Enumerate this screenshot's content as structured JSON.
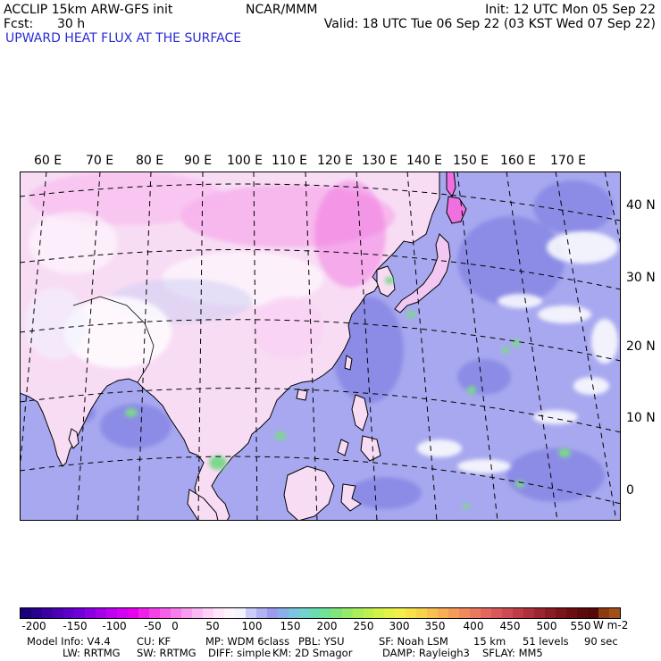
{
  "header": {
    "model_title": "ACCLIP 15km ARW-GFS init",
    "fcst_label": "Fcst:",
    "fcst_value": "30 h",
    "center_org": "NCAR/MMM",
    "init_time": "Init: 12 UTC Mon 05 Sep 22",
    "valid_time": "Valid: 18 UTC Tue 06 Sep 22 (03 KST Wed 07 Sep 22)",
    "field_name": "UPWARD HEAT FLUX AT THE SURFACE"
  },
  "map": {
    "lon_labels": [
      "60 E",
      "70 E",
      "80 E",
      "90 E",
      "100 E",
      "110 E",
      "120 E",
      "130 E",
      "140 E",
      "150 E",
      "160 E",
      "170 E"
    ],
    "lat_labels": [
      "40 N",
      "30 N",
      "20 N",
      "10 N",
      "0"
    ],
    "colors": {
      "ocean": "#a8a8f0",
      "land_warm": "#f8d8f4",
      "land_neutral": "#ffffff",
      "strong_negative": "#f070e0",
      "positive_green": "#7cd88c",
      "coastline": "#000000",
      "gridline": "#000000"
    }
  },
  "colorbar": {
    "unit": "W m-2",
    "tick_labels": [
      "-200",
      "-150",
      "-100",
      "-50",
      "0",
      "50",
      "100",
      "150",
      "200",
      "250",
      "300",
      "350",
      "400",
      "450",
      "500",
      "550"
    ],
    "colors": [
      "#1a007a",
      "#2a008e",
      "#3a00a2",
      "#4c00b6",
      "#5e00c8",
      "#7000d8",
      "#8a00e2",
      "#a400ea",
      "#be00f0",
      "#d400f2",
      "#e600ee",
      "#f020e8",
      "#f442e6",
      "#f660e8",
      "#f87eec",
      "#fa9cf0",
      "#fcb8f4",
      "#fed2f8",
      "#ffe6fa",
      "#fff4fc",
      "#f4f4ff",
      "#ccccf8",
      "#b2b2f2",
      "#9c9cee",
      "#8ab0ea",
      "#7cc4e0",
      "#72d2cc",
      "#6cdcb0",
      "#70e294",
      "#80e67c",
      "#96ea6a",
      "#aaee5c",
      "#c0f050",
      "#d2f24a",
      "#e4f248",
      "#f2f048",
      "#f6e248",
      "#f8d24a",
      "#f8c04e",
      "#f8ae52",
      "#f49c58",
      "#f08a5e",
      "#ea7860",
      "#e2685e",
      "#d8585a",
      "#cc4a52",
      "#be3c48",
      "#ae303c",
      "#9c2630",
      "#8a1c24",
      "#7a141a",
      "#6c0e12",
      "#5e0a0c",
      "#540808",
      "#8c3a12",
      "#a05018"
    ]
  },
  "model_info": {
    "line1": [
      "Model Info: V4.4",
      "CU: KF",
      "MP: WDM 6class",
      "PBL: YSU",
      "SF: Noah LSM",
      "15 km",
      "51 levels",
      "90 sec"
    ],
    "line2": [
      "LW: RRTMG",
      "SW: RRTMG",
      "DIFF: simple",
      "KM: 2D Smagor",
      "DAMP: Rayleigh3",
      "SFLAY: MM5"
    ]
  }
}
